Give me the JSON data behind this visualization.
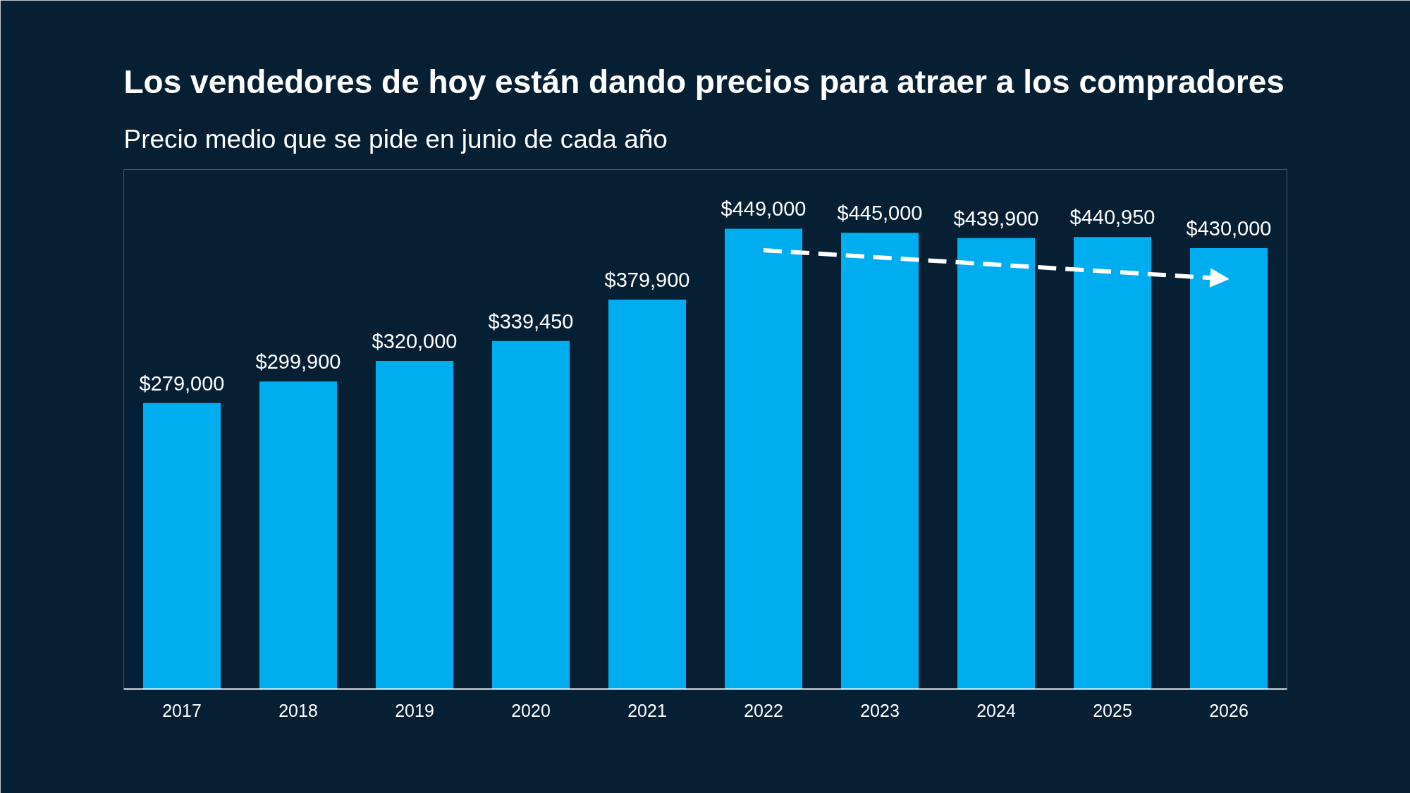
{
  "chart_data": {
    "type": "bar",
    "title": "Los vendedores de hoy están dando precios para atraer a los compradores",
    "subtitle": "Precio medio que se pide en junio de cada año",
    "categories": [
      "2017",
      "2018",
      "2019",
      "2020",
      "2021",
      "2022",
      "2023",
      "2024",
      "2025",
      "2026"
    ],
    "series": [
      {
        "color": "#00aeef",
        "values": [
          279000,
          299900,
          320000,
          339450,
          379900,
          449000,
          445000,
          439900,
          440950,
          430000
        ],
        "value_labels": [
          "$279,000",
          "$299,900",
          "$320,000",
          "$339,450",
          "$379,900",
          "$449,000",
          "$445,000",
          "$439,900",
          "$440,950",
          "$430,000"
        ]
      },
      {
        "type": "line",
        "color": "#ffffff",
        "line_style": "dashed",
        "values": [
          null,
          null,
          null,
          null,
          null,
          428000,
          421000,
          414000,
          407000,
          400000
        ]
      }
    ],
    "tick_labels": "x",
    "grid": false
  }
}
